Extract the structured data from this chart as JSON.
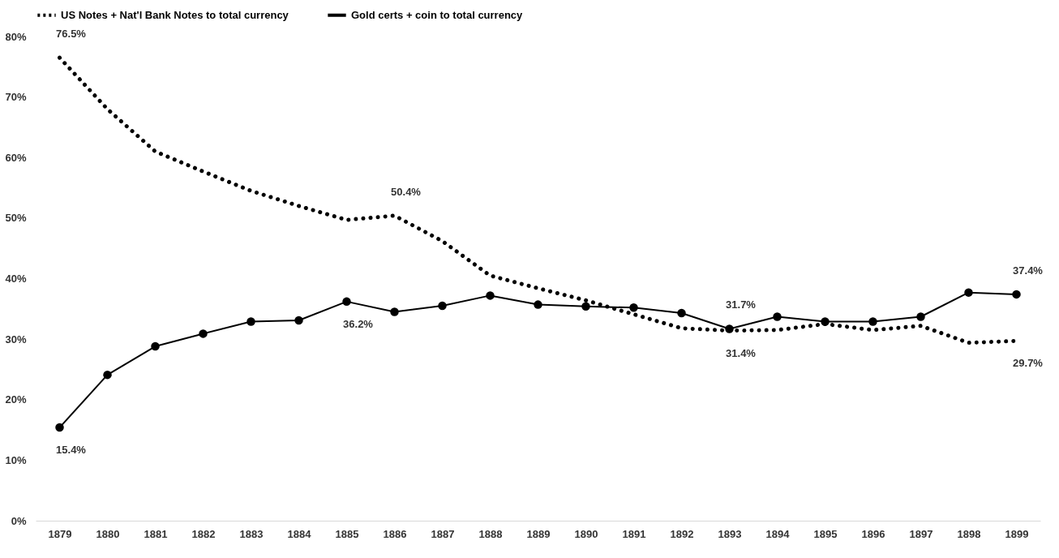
{
  "chart_data": {
    "type": "line",
    "categories": [
      "1879",
      "1880",
      "1881",
      "1882",
      "1883",
      "1884",
      "1885",
      "1886",
      "1887",
      "1888",
      "1889",
      "1890",
      "1891",
      "1892",
      "1893",
      "1894",
      "1895",
      "1896",
      "1897",
      "1898",
      "1899"
    ],
    "series": [
      {
        "name": "US Notes + Nat'l Bank Notes to total currency",
        "color": "#000000",
        "line_style": "dotted",
        "marker": "none",
        "values": [
          76.5,
          68.0,
          61.0,
          57.7,
          54.5,
          52.0,
          49.7,
          50.4,
          46.2,
          40.5,
          38.4,
          36.4,
          34.1,
          31.8,
          31.4,
          31.5,
          32.5,
          31.5,
          32.2,
          29.4,
          29.7
        ],
        "value_labels": [
          "76.5%",
          null,
          null,
          null,
          null,
          null,
          null,
          "50.4%",
          null,
          null,
          null,
          null,
          null,
          null,
          "31.4%",
          null,
          null,
          null,
          null,
          null,
          "29.7%"
        ]
      },
      {
        "name": "Gold certs + coin to total currency",
        "color": "#000000",
        "line_style": "solid",
        "marker": "circle",
        "values": [
          15.4,
          24.1,
          28.8,
          30.9,
          32.9,
          33.1,
          36.2,
          34.5,
          35.5,
          37.2,
          35.7,
          35.4,
          35.2,
          34.3,
          31.7,
          33.7,
          32.9,
          32.9,
          33.7,
          37.7,
          37.4
        ],
        "value_labels": [
          "15.4%",
          null,
          null,
          null,
          null,
          null,
          "36.2%",
          null,
          null,
          null,
          null,
          null,
          null,
          null,
          "31.7%",
          null,
          null,
          null,
          null,
          null,
          "37.4%"
        ]
      }
    ],
    "ylim": [
      0,
      80
    ],
    "yticks": [
      {
        "value": 0,
        "label": "0%"
      },
      {
        "value": 10,
        "label": "10%"
      },
      {
        "value": 20,
        "label": "20%"
      },
      {
        "value": 30,
        "label": "30%"
      },
      {
        "value": 40,
        "label": "40%"
      },
      {
        "value": 50,
        "label": "50%"
      },
      {
        "value": 60,
        "label": "60%"
      },
      {
        "value": 70,
        "label": "70%"
      },
      {
        "value": 80,
        "label": "80%"
      }
    ],
    "grid": false,
    "legend": "top"
  }
}
